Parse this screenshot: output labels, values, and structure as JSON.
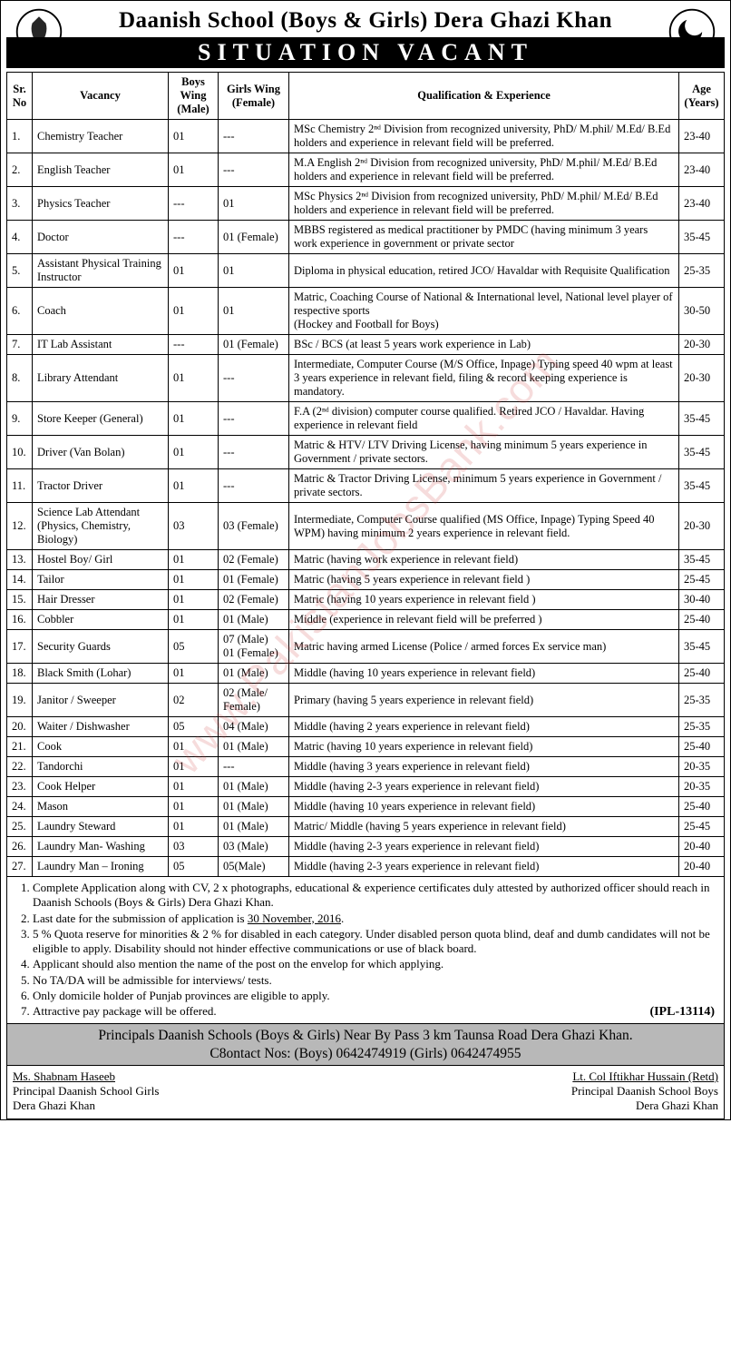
{
  "header": {
    "school_title": "Daanish School (Boys & Girls) Dera Ghazi Khan",
    "banner": "SITUATION VACANT"
  },
  "watermark": "www.PakistanJobsBank.com",
  "table": {
    "columns": [
      "Sr. No",
      "Vacancy",
      "Boys Wing (Male)",
      "Girls Wing (Female)",
      "Qualification & Experience",
      "Age (Years)"
    ],
    "rows": [
      {
        "sr": "1.",
        "vacancy": "Chemistry Teacher",
        "boys": "01",
        "girls": "---",
        "qual": "MSc Chemistry 2ⁿᵈ Division from recognized university, PhD/ M.phil/ M.Ed/ B.Ed holders and experience in relevant field will be preferred.",
        "age": "23-40"
      },
      {
        "sr": "2.",
        "vacancy": "English Teacher",
        "boys": "01",
        "girls": "---",
        "qual": "M.A English 2ⁿᵈ Division from recognized university, PhD/ M.phil/ M.Ed/ B.Ed holders and experience in relevant field will be preferred.",
        "age": "23-40"
      },
      {
        "sr": "3.",
        "vacancy": "Physics Teacher",
        "boys": "---",
        "girls": "01",
        "qual": "MSc Physics 2ⁿᵈ Division from recognized university, PhD/ M.phil/ M.Ed/ B.Ed holders and experience in relevant field will be preferred.",
        "age": "23-40"
      },
      {
        "sr": "4.",
        "vacancy": "Doctor",
        "boys": "---",
        "girls": "01 (Female)",
        "qual": "MBBS registered as medical practitioner by PMDC (having minimum 3 years work experience in government or private sector",
        "age": "35-45"
      },
      {
        "sr": "5.",
        "vacancy": "Assistant Physical Training Instructor",
        "boys": "01",
        "girls": "01",
        "qual": "Diploma in physical education, retired JCO/ Havaldar with Requisite Qualification",
        "age": "25-35"
      },
      {
        "sr": "6.",
        "vacancy": "Coach",
        "boys": "01",
        "girls": "01",
        "qual": "Matric, Coaching Course of National & International level, National level player of respective sports\n(Hockey and Football for Boys)",
        "age": "30-50"
      },
      {
        "sr": "7.",
        "vacancy": "IT Lab Assistant",
        "boys": "---",
        "girls": "01 (Female)",
        "qual": "BSc / BCS (at least 5 years work experience in Lab)",
        "age": "20-30"
      },
      {
        "sr": "8.",
        "vacancy": "Library Attendant",
        "boys": "01",
        "girls": "---",
        "qual": "Intermediate, Computer Course (M/S Office, Inpage) Typing speed 40 wpm at least 3 years experience in relevant field, filing & record keeping experience is mandatory.",
        "age": "20-30"
      },
      {
        "sr": "9.",
        "vacancy": "Store Keeper (General)",
        "boys": "01",
        "girls": "---",
        "qual": "F.A (2ⁿᵈ division) computer course qualified. Retired JCO / Havaldar. Having experience in relevant field",
        "age": "35-45"
      },
      {
        "sr": "10.",
        "vacancy": "Driver (Van Bolan)",
        "boys": "01",
        "girls": "---",
        "qual": "Matric & HTV/ LTV Driving License, having minimum 5 years experience in Government / private sectors.",
        "age": "35-45"
      },
      {
        "sr": "11.",
        "vacancy": "Tractor Driver",
        "boys": "01",
        "girls": "---",
        "qual": "Matric & Tractor Driving License, minimum 5 years experience in Government / private sectors.",
        "age": "35-45"
      },
      {
        "sr": "12.",
        "vacancy": "Science Lab Attendant (Physics, Chemistry, Biology)",
        "boys": "03",
        "girls": "03 (Female)",
        "qual": "Intermediate, Computer Course qualified (MS Office, Inpage) Typing Speed 40 WPM) having minimum 2 years experience in relevant field.",
        "age": "20-30"
      },
      {
        "sr": "13.",
        "vacancy": "Hostel Boy/ Girl",
        "boys": "01",
        "girls": "02 (Female)",
        "qual": "Matric (having work experience in relevant field)",
        "age": "35-45"
      },
      {
        "sr": "14.",
        "vacancy": "Tailor",
        "boys": "01",
        "girls": "01 (Female)",
        "qual": "Matric (having 5 years experience in relevant field )",
        "age": "25-45"
      },
      {
        "sr": "15.",
        "vacancy": "Hair Dresser",
        "boys": "01",
        "girls": "02 (Female)",
        "qual": "Matric (having 10 years experience in relevant field )",
        "age": "30-40"
      },
      {
        "sr": "16.",
        "vacancy": "Cobbler",
        "boys": "01",
        "girls": "01 (Male)",
        "qual": "Middle (experience in relevant field will be preferred )",
        "age": "25-40"
      },
      {
        "sr": "17.",
        "vacancy": "Security Guards",
        "boys": "05",
        "girls": "07 (Male)\n01 (Female)",
        "qual": "Matric having armed License (Police / armed forces Ex service man)",
        "age": "35-45"
      },
      {
        "sr": "18.",
        "vacancy": "Black Smith (Lohar)",
        "boys": "01",
        "girls": "01 (Male)",
        "qual": "Middle (having 10 years experience in relevant field)",
        "age": "25-40"
      },
      {
        "sr": "19.",
        "vacancy": "Janitor / Sweeper",
        "boys": "02",
        "girls": "02 (Male/ Female)",
        "qual": "Primary (having 5 years experience in relevant field)",
        "age": "25-35"
      },
      {
        "sr": "20.",
        "vacancy": "Waiter / Dishwasher",
        "boys": "05",
        "girls": "04 (Male)",
        "qual": "Middle (having 2 years experience in relevant field)",
        "age": "25-35"
      },
      {
        "sr": "21.",
        "vacancy": "Cook",
        "boys": "01",
        "girls": "01 (Male)",
        "qual": "Matric (having 10 years experience in relevant field)",
        "age": "25-40"
      },
      {
        "sr": "22.",
        "vacancy": "Tandorchi",
        "boys": "01",
        "girls": "---",
        "qual": "Middle (having 3 years experience in relevant field)",
        "age": "20-35"
      },
      {
        "sr": "23.",
        "vacancy": "Cook Helper",
        "boys": "01",
        "girls": "01 (Male)",
        "qual": "Middle (having 2-3 years experience in relevant field)",
        "age": "20-35"
      },
      {
        "sr": "24.",
        "vacancy": "Mason",
        "boys": "01",
        "girls": "01 (Male)",
        "qual": "Middle (having 10 years experience in relevant field)",
        "age": "25-40"
      },
      {
        "sr": "25.",
        "vacancy": "Laundry Steward",
        "boys": "01",
        "girls": "01 (Male)",
        "qual": "Matric/ Middle (having 5 years experience in relevant field)",
        "age": "25-45"
      },
      {
        "sr": "26.",
        "vacancy": "Laundry Man- Washing",
        "boys": "03",
        "girls": "03 (Male)",
        "qual": "Middle (having 2-3 years experience in relevant field)",
        "age": "20-40"
      },
      {
        "sr": "27.",
        "vacancy": "Laundry Man – Ironing",
        "boys": "05",
        "girls": "05(Male)",
        "qual": "Middle (having 2-3 years experience in relevant field)",
        "age": "20-40"
      }
    ]
  },
  "instructions": {
    "items": [
      "Complete Application along with CV, 2 x photographs, educational & experience certificates duly attested by authorized officer should reach in Daanish Schools (Boys & Girls) Dera Ghazi Khan.",
      "Last date for the submission of application is <u>30 November, 2016</u>.",
      "5 % Quota reserve for minorities & 2 % for disabled in each category. Under disabled person quota blind, deaf and dumb candidates will not be eligible to apply. Disability should not hinder effective communications or use of black board.",
      "Applicant should also mention the name of the post on the envelop for which applying.",
      "No TA/DA will be admissible for interviews/ tests.",
      "Only domicile holder of Punjab provinces are eligible to apply.",
      "Attractive pay package will be offered."
    ],
    "ipl": "(IPL-13114)"
  },
  "address": {
    "line1": "Principals Daanish Schools (Boys & Girls) Near By Pass 3 km Taunsa Road Dera Ghazi Khan.",
    "line2": "C8ontact Nos: (Boys) 0642474919 (Girls) 0642474955"
  },
  "footer": {
    "left": {
      "name": "Ms. Shabnam Haseeb",
      "title": "Principal Daanish School Girls",
      "loc": "Dera Ghazi Khan"
    },
    "right": {
      "name": "Lt. Col Iftikhar Hussain (Retd)",
      "title": "Principal Daanish School Boys",
      "loc": "Dera Ghazi Khan"
    }
  }
}
